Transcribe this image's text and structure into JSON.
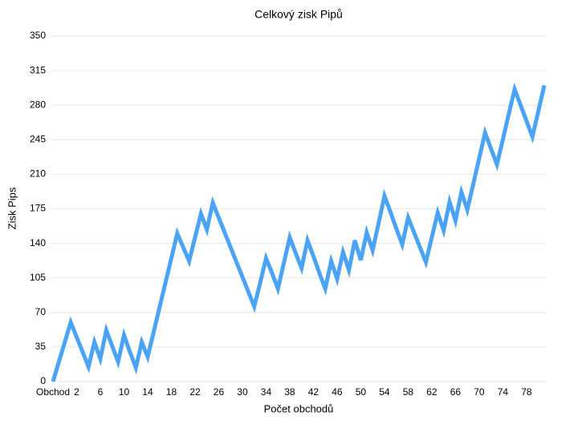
{
  "chart_data": {
    "type": "line",
    "title": "Celkový zisk Pipů",
    "x_label": "Počet obchodů",
    "y_label": "Zisk Pips",
    "categories": [
      "Obchod",
      null,
      null,
      null,
      "2",
      null,
      null,
      null,
      "6",
      null,
      null,
      null,
      "10",
      null,
      null,
      null,
      "14",
      null,
      null,
      null,
      "18",
      null,
      null,
      null,
      "22",
      null,
      null,
      null,
      "26",
      null,
      null,
      null,
      "30",
      null,
      null,
      null,
      "34",
      null,
      null,
      null,
      "38",
      null,
      null,
      null,
      "42",
      null,
      null,
      null,
      "46",
      null,
      null,
      null,
      "50",
      null,
      null,
      null,
      "54",
      null,
      null,
      null,
      "58",
      null,
      null,
      null,
      "62",
      null,
      null,
      null,
      "66",
      null,
      null,
      null,
      "70",
      null,
      null,
      null,
      "74",
      null,
      null,
      null,
      "78",
      null,
      null,
      null
    ],
    "series": [
      {
        "name": "Zisk Pips",
        "color": "#4aa3f5",
        "values": [
          0,
          20,
          40,
          60,
          45,
          30,
          15,
          40,
          23,
          52,
          36,
          20,
          47,
          30,
          14,
          40,
          25,
          50,
          75,
          100,
          125,
          150,
          136,
          122,
          146,
          170,
          154,
          181,
          166,
          151,
          136,
          121,
          106,
          91,
          76,
          100,
          125,
          110,
          94,
          120,
          146,
          130,
          115,
          143,
          127,
          110,
          94,
          122,
          104,
          131,
          113,
          143,
          123,
          151,
          133,
          160,
          188,
          172,
          155,
          139,
          166,
          151,
          136,
          121,
          146,
          171,
          153,
          182,
          163,
          192,
          174,
          200,
          226,
          252,
          236,
          220,
          245,
          271,
          296,
          280,
          264,
          248,
          274,
          300
        ]
      }
    ],
    "ylim": [
      0,
      350
    ],
    "yticks": [
      0,
      35,
      70,
      105,
      140,
      175,
      210,
      245,
      280,
      315,
      350
    ],
    "grid": true
  }
}
